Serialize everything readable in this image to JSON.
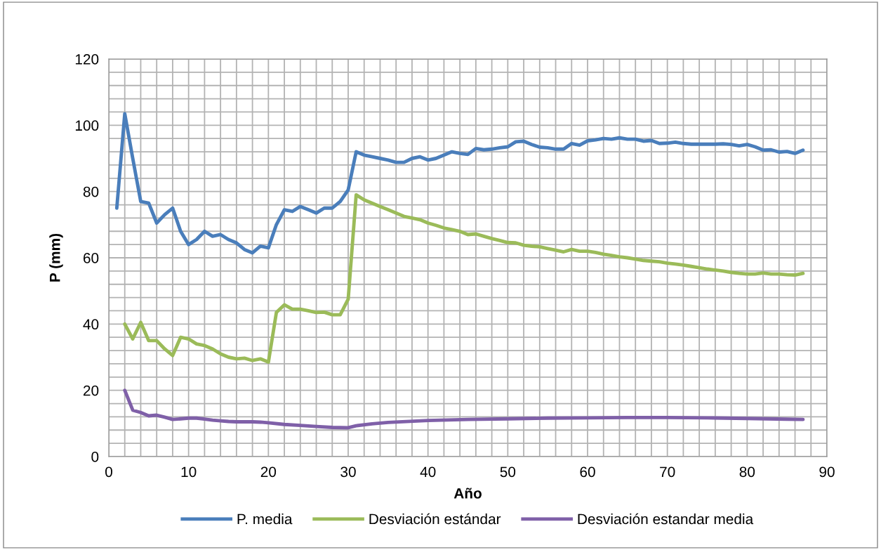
{
  "chart_data": {
    "type": "line",
    "xlabel": "Año",
    "ylabel": "P (mm)",
    "xlim": [
      0,
      90
    ],
    "ylim": [
      0,
      120
    ],
    "xticks": [
      0,
      {
        "value": 2,
        "label": null
      },
      {
        "value": 4,
        "label": null
      },
      {
        "value": 6,
        "label": null
      },
      {
        "value": 8,
        "label": null
      },
      10,
      {
        "value": 12,
        "label": null
      },
      {
        "value": 14,
        "label": null
      },
      {
        "value": 16,
        "label": null
      },
      {
        "value": 18,
        "label": null
      },
      20,
      {
        "value": 22,
        "label": null
      },
      {
        "value": 24,
        "label": null
      },
      {
        "value": 26,
        "label": null
      },
      {
        "value": 28,
        "label": null
      },
      30,
      {
        "value": 32,
        "label": null
      },
      {
        "value": 34,
        "label": null
      },
      {
        "value": 36,
        "label": null
      },
      {
        "value": 38,
        "label": null
      },
      40,
      {
        "value": 42,
        "label": null
      },
      {
        "value": 44,
        "label": null
      },
      {
        "value": 46,
        "label": null
      },
      {
        "value": 48,
        "label": null
      },
      50,
      {
        "value": 52,
        "label": null
      },
      {
        "value": 54,
        "label": null
      },
      {
        "value": 56,
        "label": null
      },
      {
        "value": 58,
        "label": null
      },
      60,
      {
        "value": 62,
        "label": null
      },
      {
        "value": 64,
        "label": null
      },
      {
        "value": 66,
        "label": null
      },
      {
        "value": 68,
        "label": null
      },
      70,
      {
        "value": 72,
        "label": null
      },
      {
        "value": 74,
        "label": null
      },
      {
        "value": 76,
        "label": null
      },
      {
        "value": 78,
        "label": null
      },
      80,
      {
        "value": 82,
        "label": null
      },
      {
        "value": 84,
        "label": null
      },
      {
        "value": 86,
        "label": null
      },
      {
        "value": 88,
        "label": null
      },
      90
    ],
    "yticks": [
      0,
      {
        "value": 4,
        "label": null
      },
      {
        "value": 8,
        "label": null
      },
      {
        "value": 12,
        "label": null
      },
      {
        "value": 16,
        "label": null
      },
      20,
      {
        "value": 24,
        "label": null
      },
      {
        "value": 28,
        "label": null
      },
      {
        "value": 32,
        "label": null
      },
      {
        "value": 36,
        "label": null
      },
      40,
      {
        "value": 44,
        "label": null
      },
      {
        "value": 48,
        "label": null
      },
      {
        "value": 52,
        "label": null
      },
      {
        "value": 56,
        "label": null
      },
      60,
      {
        "value": 64,
        "label": null
      },
      {
        "value": 68,
        "label": null
      },
      {
        "value": 72,
        "label": null
      },
      {
        "value": 76,
        "label": null
      },
      80,
      {
        "value": 84,
        "label": null
      },
      {
        "value": 88,
        "label": null
      },
      {
        "value": 92,
        "label": null
      },
      {
        "value": 96,
        "label": null
      },
      100,
      {
        "value": 104,
        "label": null
      },
      {
        "value": 108,
        "label": null
      },
      {
        "value": 112,
        "label": null
      },
      {
        "value": 116,
        "label": null
      },
      120
    ],
    "grid": true,
    "legend": "bottom",
    "marker": "none",
    "line_style": "solid",
    "series": [
      {
        "name": "P. media",
        "color": "#4a7ebb",
        "x": [
          1,
          2,
          3,
          4,
          5,
          6,
          7,
          8,
          9,
          10,
          11,
          12,
          13,
          14,
          15,
          16,
          17,
          18,
          19,
          20,
          21,
          22,
          23,
          24,
          25,
          26,
          27,
          28,
          29,
          30,
          31,
          32,
          33,
          34,
          35,
          36,
          37,
          38,
          39,
          40,
          41,
          42,
          43,
          44,
          45,
          46,
          47,
          48,
          49,
          50,
          51,
          52,
          53,
          54,
          55,
          56,
          57,
          58,
          59,
          60,
          61,
          62,
          63,
          64,
          65,
          66,
          67,
          68,
          69,
          70,
          71,
          72,
          73,
          74,
          75,
          76,
          77,
          78,
          79,
          80,
          81,
          82,
          83,
          84,
          85,
          86,
          87
        ],
        "values": [
          75,
          103.5,
          90,
          77,
          76.5,
          70.5,
          73,
          75,
          68,
          64,
          65.5,
          68,
          66.5,
          67,
          65.5,
          64.5,
          62.5,
          61.5,
          63.5,
          63,
          70,
          74.5,
          74,
          75.5,
          74.5,
          73.5,
          75,
          75,
          77,
          80.5,
          92,
          91,
          90.5,
          90,
          89.5,
          88.8,
          88.8,
          90,
          90.5,
          89.5,
          90,
          91,
          92,
          91.5,
          91.2,
          93,
          92.6,
          92.8,
          93.2,
          93.5,
          95,
          95.2,
          94.2,
          93.4,
          93.2,
          92.8,
          92.8,
          94.5,
          94,
          95.3,
          95.6,
          96,
          95.8,
          96.2,
          95.8,
          95.8,
          95.2,
          95.4,
          94.5,
          94.6,
          94.9,
          94.5,
          94.3,
          94.3,
          94.3,
          94.3,
          94.4,
          94.2,
          93.8,
          94.2,
          93.5,
          92.5,
          92.6,
          91.9,
          92.1,
          91.5,
          92.5
        ]
      },
      {
        "name": "Desviación estándar",
        "color": "#9bbb59",
        "x": [
          2,
          3,
          4,
          5,
          6,
          7,
          8,
          9,
          10,
          11,
          12,
          13,
          14,
          15,
          16,
          17,
          18,
          19,
          20,
          21,
          22,
          23,
          24,
          25,
          26,
          27,
          28,
          29,
          30,
          31,
          32,
          33,
          34,
          35,
          36,
          37,
          38,
          39,
          40,
          41,
          42,
          43,
          44,
          45,
          46,
          47,
          48,
          49,
          50,
          51,
          52,
          53,
          54,
          55,
          56,
          57,
          58,
          59,
          60,
          61,
          62,
          63,
          64,
          65,
          66,
          67,
          68,
          69,
          70,
          71,
          72,
          73,
          74,
          75,
          76,
          77,
          78,
          79,
          80,
          81,
          82,
          83,
          84,
          85,
          86,
          87
        ],
        "values": [
          40,
          35.5,
          40.5,
          35,
          35,
          32.5,
          30.5,
          36,
          35.5,
          34,
          33.5,
          32.5,
          31,
          30,
          29.5,
          29.7,
          29,
          29.5,
          28.5,
          43.5,
          45.8,
          44.5,
          44.5,
          44,
          43.5,
          43.6,
          42.8,
          42.8,
          47.5,
          79,
          77.5,
          76.5,
          75.5,
          74.5,
          73.5,
          72.5,
          72,
          71.5,
          70.5,
          69.8,
          69,
          68.5,
          68,
          67,
          67.2,
          66.5,
          65.8,
          65.2,
          64.6,
          64.5,
          63.8,
          63.5,
          63.3,
          62.8,
          62.3,
          61.8,
          62.5,
          62,
          62,
          61.6,
          61.1,
          60.7,
          60.3,
          60,
          59.6,
          59.2,
          59,
          58.8,
          58.4,
          58.1,
          57.8,
          57.4,
          57,
          56.6,
          56.3,
          56,
          55.6,
          55.3,
          55.1,
          55.1,
          55.4,
          55.1,
          55.1,
          54.9,
          54.8,
          55.3
        ]
      },
      {
        "name": "Desviación estandar media",
        "color": "#7f60a8",
        "x": [
          2,
          3,
          4,
          5,
          6,
          7,
          8,
          9,
          10,
          11,
          12,
          13,
          14,
          15,
          16,
          17,
          18,
          19,
          20,
          22,
          24,
          26,
          28,
          30,
          31,
          33,
          35,
          40,
          45,
          50,
          55,
          60,
          65,
          70,
          75,
          80,
          85,
          87
        ],
        "values": [
          20,
          14,
          13.3,
          12.3,
          12.5,
          11.9,
          11.2,
          11.4,
          11.6,
          11.6,
          11.3,
          11,
          10.8,
          10.6,
          10.5,
          10.5,
          10.5,
          10.4,
          10.2,
          9.7,
          9.4,
          9.1,
          8.8,
          8.7,
          9.3,
          9.9,
          10.3,
          10.9,
          11.2,
          11.4,
          11.6,
          11.7,
          11.8,
          11.8,
          11.7,
          11.5,
          11.3,
          11.2
        ]
      }
    ]
  }
}
